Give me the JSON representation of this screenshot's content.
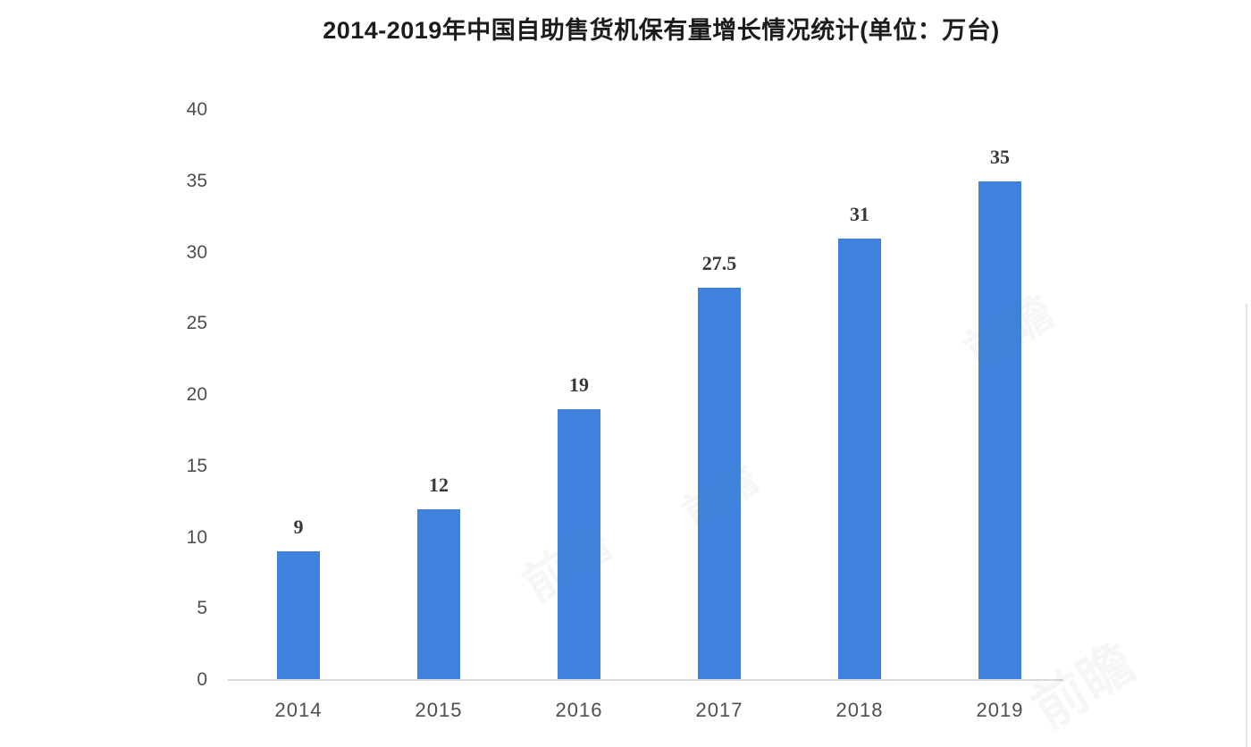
{
  "chart_data": {
    "type": "bar",
    "title": "2014-2019年中国自助售货机保有量增长情况统计(单位：万台)",
    "categories": [
      "2014",
      "2015",
      "2016",
      "2017",
      "2018",
      "2019"
    ],
    "values": [
      9,
      12,
      19,
      27.5,
      31,
      35
    ],
    "value_labels": [
      "9",
      "12",
      "19",
      "27.5",
      "31",
      "35"
    ],
    "xlabel": "",
    "ylabel": "",
    "ylim": [
      0,
      40
    ],
    "yticks": [
      0,
      5,
      10,
      15,
      20,
      25,
      30,
      35,
      40
    ],
    "grid": false,
    "legend": "none",
    "bar_color": "#3f82dd"
  },
  "colors": {
    "bar": "#3f82dd",
    "axis_line": "#d9d9d9",
    "title_text": "#1c1c1c",
    "tick_text": "#4e4e4e",
    "value_text": "#373737",
    "background": "#ffffff"
  },
  "watermark": {
    "text": "前瞻"
  }
}
